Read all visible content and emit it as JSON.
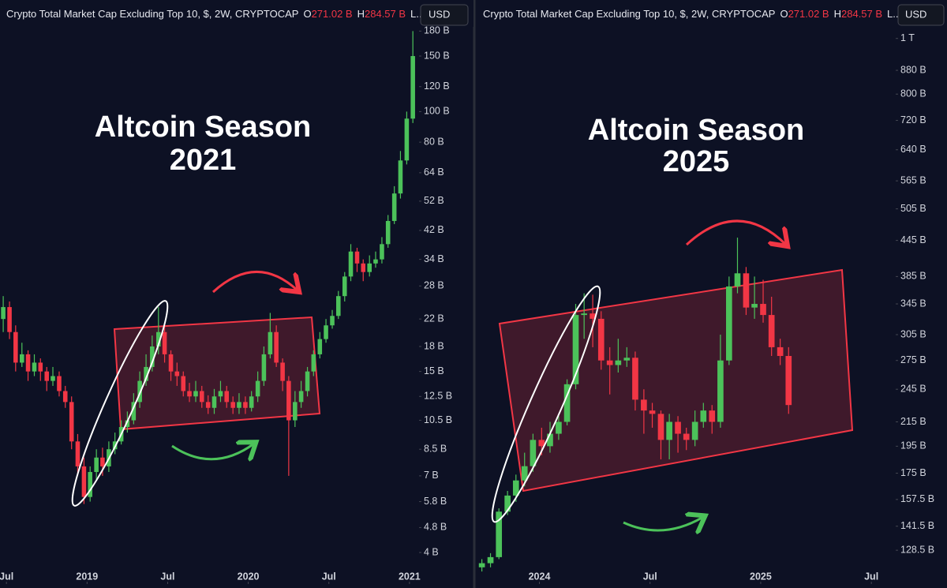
{
  "chart_data": [
    {
      "type": "candlestick",
      "title": "Crypto Total Market Cap Excluding Top 10, $, 2W, CRYPTOCAP",
      "ohlc_info": {
        "open_label": "O",
        "open_value": "271.02 B",
        "high_label": "H",
        "high_value": "284.57 B",
        "low_label": "L..."
      },
      "currency": "USD",
      "annotation": [
        "Altcoin Season",
        "2021"
      ],
      "log_scale": true,
      "up_color": "#4cc25a",
      "down_color": "#f23645",
      "x": [
        2018.48,
        2018.519,
        2018.557,
        2018.596,
        2018.634,
        2018.673,
        2018.711,
        2018.75,
        2018.788,
        2018.827,
        2018.865,
        2018.904,
        2018.942,
        2018.981,
        2019.019,
        2019.058,
        2019.096,
        2019.135,
        2019.173,
        2019.212,
        2019.25,
        2019.289,
        2019.327,
        2019.366,
        2019.404,
        2019.443,
        2019.481,
        2019.52,
        2019.558,
        2019.597,
        2019.635,
        2019.674,
        2019.712,
        2019.751,
        2019.789,
        2019.828,
        2019.866,
        2019.905,
        2019.943,
        2019.982,
        2020.02,
        2020.059,
        2020.097,
        2020.136,
        2020.174,
        2020.213,
        2020.251,
        2020.29,
        2020.328,
        2020.367,
        2020.405,
        2020.444,
        2020.482,
        2020.521,
        2020.559,
        2020.598,
        2020.636,
        2020.675,
        2020.713,
        2020.752,
        2020.79,
        2020.829,
        2020.867,
        2020.906,
        2020.944,
        2020.983,
        2021.021
      ],
      "open": [
        22,
        24,
        20,
        16,
        17,
        15,
        16,
        15,
        14,
        14.5,
        13,
        12,
        9,
        7.5,
        6,
        7.2,
        8,
        7.5,
        8.5,
        9,
        10,
        10.5,
        12,
        14,
        15.5,
        18,
        20,
        17,
        15,
        14.5,
        13,
        12.5,
        13,
        12,
        11.5,
        12.5,
        13,
        12,
        11.5,
        12,
        11.5,
        12.5,
        14,
        17,
        20,
        16,
        14,
        10.5,
        12,
        13,
        15,
        17,
        19,
        21,
        22.5,
        26,
        30,
        36,
        33,
        31,
        33,
        34,
        38,
        45,
        55,
        70,
        95
      ],
      "high": [
        26,
        25,
        21,
        18.5,
        17.5,
        17,
        16.5,
        15.5,
        15.5,
        15,
        13.5,
        12.5,
        9.5,
        8,
        7.5,
        8.5,
        8.6,
        9,
        9.6,
        10.5,
        11.2,
        12.8,
        15,
        17,
        19.5,
        24,
        21,
        17.5,
        16,
        15,
        13.8,
        14,
        13.5,
        12.6,
        13.2,
        14,
        13.5,
        12.5,
        12.8,
        12.5,
        13,
        15,
        18,
        23,
        21,
        16.5,
        14.5,
        13,
        14,
        15.5,
        17.5,
        20,
        22,
        23.5,
        27,
        31,
        38,
        37,
        34,
        35,
        36,
        40,
        47,
        58,
        75,
        100,
        180
      ],
      "low": [
        20,
        19,
        15,
        15.5,
        14,
        14.5,
        14,
        13,
        13.5,
        12.5,
        11.5,
        8.5,
        7,
        5.7,
        5.8,
        6.8,
        7,
        7.2,
        8.2,
        8.8,
        9.6,
        10.2,
        11.5,
        13.5,
        15,
        17,
        16,
        14,
        13.5,
        12.5,
        12,
        12,
        11.5,
        11,
        11,
        12,
        11.5,
        11,
        11,
        11,
        11.2,
        12,
        13.5,
        16.5,
        15.5,
        13,
        7,
        10,
        11.5,
        12.5,
        14.5,
        16.5,
        18.5,
        20.5,
        22,
        25,
        29,
        31,
        29,
        30,
        32,
        33,
        37,
        44,
        53,
        68,
        92
      ],
      "close": [
        24,
        20,
        16,
        17,
        15,
        16,
        15,
        14,
        14.5,
        13,
        12,
        9,
        7.5,
        6,
        7.2,
        8,
        7.5,
        8.5,
        9,
        10,
        10.5,
        12,
        14,
        15.5,
        18,
        20,
        17,
        15,
        14.5,
        13,
        12.5,
        13,
        12,
        11.5,
        12.5,
        13,
        12,
        11.5,
        12,
        11.5,
        12.5,
        14,
        17,
        20,
        16,
        14,
        10.5,
        12,
        13,
        15,
        17,
        19,
        21,
        22.5,
        26,
        30,
        36,
        33,
        31,
        33,
        34,
        38,
        45,
        55,
        70,
        95,
        150
      ],
      "xlim": [
        2018.46,
        2021.03
      ],
      "xticks": [
        {
          "value": 2018.5,
          "label": "Jul"
        },
        {
          "value": 2019,
          "label": "2019"
        },
        {
          "value": 2019.5,
          "label": "Jul"
        },
        {
          "value": 2020,
          "label": "2020"
        },
        {
          "value": 2020.5,
          "label": "Jul"
        },
        {
          "value": 2021,
          "label": "2021"
        }
      ],
      "ylim": [
        3.27,
        190
      ],
      "yticks": [
        {
          "value": 180,
          "label": "180 B"
        },
        {
          "value": 150,
          "label": "150 B"
        },
        {
          "value": 120,
          "label": "120 B"
        },
        {
          "value": 100,
          "label": "100 B"
        },
        {
          "value": 80,
          "label": "80 B"
        },
        {
          "value": 64,
          "label": "64 B"
        },
        {
          "value": 52,
          "label": "52 B"
        },
        {
          "value": 42,
          "label": "42 B"
        },
        {
          "value": 34,
          "label": "34 B"
        },
        {
          "value": 28,
          "label": "28 B"
        },
        {
          "value": 22,
          "label": "22 B"
        },
        {
          "value": 18,
          "label": "18 B"
        },
        {
          "value": 15,
          "label": "15 B"
        },
        {
          "value": 12.5,
          "label": "12.5 B"
        },
        {
          "value": 10.5,
          "label": "10.5 B"
        },
        {
          "value": 8.5,
          "label": "8.5 B"
        },
        {
          "value": 7,
          "label": "7 B"
        },
        {
          "value": 5.8,
          "label": "5.8 B"
        },
        {
          "value": 4.8,
          "label": "4.8 B"
        },
        {
          "value": 4,
          "label": "4 B"
        }
      ]
    },
    {
      "type": "candlestick",
      "title": "Crypto Total Market Cap Excluding Top 10, $, 2W, CRYPTOCAP",
      "ohlc_info": {
        "open_label": "O",
        "open_value": "271.02 B",
        "high_label": "H",
        "high_value": "284.57 B",
        "low_label": "L..."
      },
      "currency": "USD",
      "annotation": [
        "Altcoin Season",
        "2025"
      ],
      "log_scale": true,
      "up_color": "#4cc25a",
      "down_color": "#f23645",
      "x": [
        2023.74,
        2023.779,
        2023.817,
        2023.856,
        2023.894,
        2023.933,
        2023.971,
        2024.01,
        2024.048,
        2024.087,
        2024.125,
        2024.164,
        2024.202,
        2024.241,
        2024.279,
        2024.318,
        2024.356,
        2024.395,
        2024.433,
        2024.472,
        2024.51,
        2024.549,
        2024.587,
        2024.626,
        2024.664,
        2024.703,
        2024.741,
        2024.78,
        2024.818,
        2024.857,
        2024.895,
        2024.934,
        2024.972,
        2025.011,
        2025.049,
        2025.088,
        2025.126
      ],
      "open": [
        120,
        122,
        125,
        150,
        160,
        170,
        180,
        200,
        195,
        205,
        215,
        250,
        330,
        332,
        325,
        275,
        270,
        275,
        278,
        235,
        225,
        222,
        200,
        215,
        205,
        200,
        215,
        225,
        215,
        275,
        370,
        390,
        340,
        345,
        330,
        290,
        280
      ],
      "high": [
        124,
        127,
        152,
        163,
        174,
        190,
        205,
        210,
        215,
        220,
        255,
        345,
        360,
        358,
        335,
        290,
        300,
        290,
        285,
        245,
        232,
        225,
        222,
        220,
        210,
        225,
        232,
        230,
        305,
        385,
        450,
        400,
        385,
        380,
        355,
        300,
        290
      ],
      "low": [
        118,
        120,
        124,
        148,
        156,
        166,
        176,
        188,
        190,
        200,
        212,
        245,
        300,
        290,
        265,
        240,
        262,
        268,
        225,
        205,
        210,
        185,
        185,
        190,
        192,
        195,
        210,
        205,
        210,
        270,
        360,
        330,
        325,
        320,
        280,
        270,
        222
      ],
      "close": [
        122,
        125,
        150,
        160,
        170,
        180,
        200,
        195,
        205,
        215,
        250,
        330,
        332,
        325,
        275,
        270,
        275,
        278,
        235,
        225,
        222,
        200,
        215,
        205,
        200,
        215,
        225,
        215,
        275,
        370,
        390,
        340,
        345,
        330,
        290,
        280,
        230
      ],
      "xlim": [
        2023.72,
        2025.61
      ],
      "xticks": [
        {
          "value": 2024,
          "label": "2024"
        },
        {
          "value": 2024.5,
          "label": "Jul"
        },
        {
          "value": 2025,
          "label": "2025"
        },
        {
          "value": 2025.5,
          "label": "Jul"
        }
      ],
      "ylim": [
        114,
        1061
      ],
      "yticks": [
        {
          "value": 1000,
          "label": "1 T"
        },
        {
          "value": 880,
          "label": "880 B"
        },
        {
          "value": 800,
          "label": "800 B"
        },
        {
          "value": 720,
          "label": "720 B"
        },
        {
          "value": 640,
          "label": "640 B"
        },
        {
          "value": 565,
          "label": "565 B"
        },
        {
          "value": 505,
          "label": "505 B"
        },
        {
          "value": 445,
          "label": "445 B"
        },
        {
          "value": 385,
          "label": "385 B"
        },
        {
          "value": 345,
          "label": "345 B"
        },
        {
          "value": 305,
          "label": "305 B"
        },
        {
          "value": 275,
          "label": "275 B"
        },
        {
          "value": 245,
          "label": "245 B"
        },
        {
          "value": 215,
          "label": "215 B"
        },
        {
          "value": 195,
          "label": "195 B"
        },
        {
          "value": 175,
          "label": "175 B"
        },
        {
          "value": 157.5,
          "label": "157.5 B"
        },
        {
          "value": 141.5,
          "label": "141.5 B"
        },
        {
          "value": 128.5,
          "label": "128.5 B"
        }
      ]
    }
  ]
}
